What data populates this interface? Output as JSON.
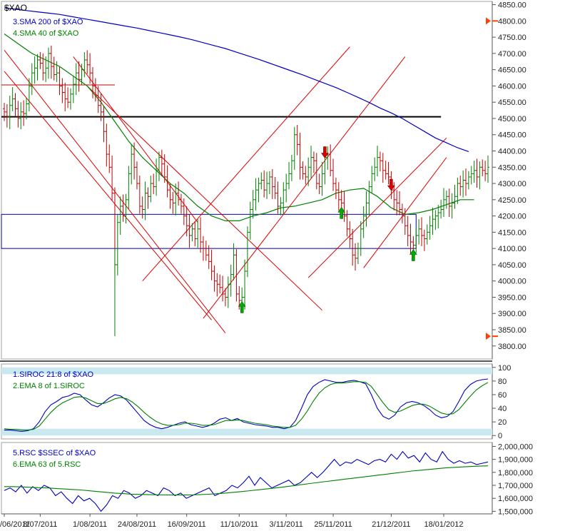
{
  "chart_data": [
    {
      "type": "line",
      "subtype": "ohlc-bars",
      "title": "$XAO",
      "y_axis": "right",
      "ylim": [
        3760,
        4860
      ],
      "ticks": [
        3800,
        3850,
        3900,
        3950,
        4000,
        4050,
        4100,
        4150,
        4200,
        4250,
        4300,
        4350,
        4400,
        4450,
        4500,
        4550,
        4600,
        4650,
        4700,
        4750,
        4800,
        4850
      ],
      "tick_labels": [
        "3800.00",
        "3850.00",
        "3900.00",
        "3950.00",
        "4000.00",
        "4050.00",
        "4100.00",
        "4150.00",
        "4200.00",
        "4250.00",
        "4300.00",
        "4350.00",
        "4400.00",
        "4450.00",
        "4500.00",
        "4550.00",
        "4600.00",
        "4650.00",
        "4700.00",
        "4750.00",
        "4800.00",
        "4850.00"
      ],
      "markers_right": [
        4800,
        3830
      ],
      "colors": {
        "up": "#008000",
        "down": "#c00000",
        "sma200": "#0000c0",
        "sma40": "#008000",
        "channels": "#dd0000",
        "levels": "#000000",
        "boxes": "#0000a0"
      },
      "legend": [
        {
          "label": "3.SMA 200  of $XAO",
          "color": "#0000c0"
        },
        {
          "label": "4.SMA 40  of $XAO",
          "color": "#008000"
        }
      ],
      "close": [
        4520,
        4505,
        4540,
        4560,
        4530,
        4500,
        4520,
        4515,
        4545,
        4600,
        4640,
        4655,
        4680,
        4670,
        4640,
        4655,
        4700,
        4660,
        4635,
        4640,
        4600,
        4580,
        4560,
        4550,
        4575,
        4605,
        4640,
        4620,
        4650,
        4680,
        4665,
        4640,
        4600,
        4570,
        4540,
        4520,
        4460,
        4390,
        4350,
        4270,
        4050,
        4180,
        4230,
        4200,
        4250,
        4330,
        4390,
        4350,
        4300,
        4230,
        4220,
        4270,
        4260,
        4300,
        4290,
        4340,
        4380,
        4360,
        4320,
        4280,
        4250,
        4240,
        4270,
        4250,
        4230,
        4200,
        4170,
        4140,
        4160,
        4130,
        4160,
        4120,
        4100,
        4080,
        4060,
        4030,
        4000,
        3990,
        3980,
        3960,
        3950,
        3990,
        4020,
        4080,
        3960,
        3940,
        3950,
        4030,
        4150,
        4220,
        4250,
        4280,
        4300,
        4310,
        4280,
        4300,
        4320,
        4290,
        4270,
        4230,
        4240,
        4280,
        4300,
        4330,
        4370,
        4450,
        4420,
        4350,
        4330,
        4320,
        4350,
        4380,
        4370,
        4300,
        4290,
        4330,
        4380,
        4390,
        4340,
        4300,
        4280,
        4250,
        4240,
        4200,
        4160,
        4130,
        4080,
        4070,
        4100,
        4160,
        4200,
        4240,
        4290,
        4330,
        4350,
        4380,
        4370,
        4340,
        4330,
        4320,
        4280,
        4250,
        4240,
        4220,
        4200,
        4170,
        4140,
        4120,
        4110,
        4140,
        4160,
        4140,
        4130,
        4150,
        4170,
        4190,
        4200,
        4210,
        4220,
        4250,
        4260,
        4230,
        4240,
        4260,
        4300,
        4290,
        4310,
        4300,
        4320,
        4330,
        4340,
        4320,
        4350,
        4340,
        4330,
        4350
      ],
      "sma200": [
        4840,
        4836,
        4832,
        4828,
        4824,
        4820,
        4814,
        4808,
        4802,
        4796,
        4790,
        4784,
        4778,
        4771,
        4764,
        4757,
        4750,
        4742,
        4733,
        4724,
        4715,
        4704,
        4693,
        4682,
        4670,
        4658,
        4646,
        4634,
        4621,
        4608,
        4595,
        4580,
        4565,
        4549,
        4532,
        4517,
        4500,
        4480,
        4460,
        4440,
        4425,
        4410,
        4398
      ],
      "sma200_x": [
        0,
        4,
        8,
        12,
        16,
        20,
        24,
        28,
        32,
        36,
        40,
        44,
        48,
        52,
        56,
        60,
        64,
        68,
        72,
        76,
        80,
        84,
        88,
        92,
        96,
        100,
        104,
        108,
        112,
        116,
        120,
        124,
        128,
        132,
        136,
        140,
        144,
        148,
        152,
        156,
        160,
        164,
        168
      ],
      "sma40": [
        4760,
        4730,
        4700,
        4680,
        4660,
        4630,
        4600,
        4550,
        4490,
        4430,
        4380,
        4340,
        4300,
        4270,
        4230,
        4200,
        4185,
        4185,
        4200,
        4210,
        4225,
        4230,
        4240,
        4250,
        4270,
        4280,
        4285,
        4260,
        4225,
        4205,
        4210,
        4220,
        4235,
        4250,
        4250
      ],
      "sma40_x": [
        0,
        5,
        10,
        15,
        20,
        25,
        30,
        35,
        40,
        45,
        50,
        55,
        60,
        65,
        70,
        75,
        80,
        85,
        90,
        95,
        100,
        105,
        110,
        115,
        120,
        125,
        130,
        135,
        140,
        145,
        150,
        155,
        160,
        165,
        170
      ],
      "horizontal_levels": [
        4505,
        4603
      ],
      "boxes": [
        {
          "from": 4100,
          "to": 4205
        }
      ],
      "channel_lines": [
        {
          "from": [
            0,
            4710
          ],
          "to": [
            80,
            3840
          ]
        },
        {
          "from": [
            0,
            4645
          ],
          "to": [
            75,
            3880
          ]
        },
        {
          "from": [
            25,
            4690
          ],
          "to": [
            70,
            4180
          ]
        },
        {
          "from": [
            30,
            4600
          ],
          "to": [
            115,
            3910
          ]
        },
        {
          "from": [
            50,
            4000
          ],
          "to": [
            125,
            4720
          ]
        },
        {
          "from": [
            72,
            3885
          ],
          "to": [
            145,
            4690
          ]
        },
        {
          "from": [
            110,
            4010
          ],
          "to": [
            160,
            4440
          ]
        },
        {
          "from": [
            130,
            4040
          ],
          "to": [
            160,
            4380
          ]
        }
      ],
      "signals": [
        {
          "x": 86,
          "direction": "up",
          "color": "#00aa00"
        },
        {
          "x": 116,
          "direction": "down",
          "color": "#dd0000"
        },
        {
          "x": 122,
          "direction": "up",
          "color": "#00aa00"
        },
        {
          "x": 140,
          "direction": "down",
          "color": "#dd0000"
        },
        {
          "x": 148,
          "direction": "up",
          "color": "#00aa00"
        }
      ]
    },
    {
      "type": "line",
      "title": "",
      "ylim": [
        -5,
        105
      ],
      "ticks": [
        0,
        20,
        40,
        60,
        80,
        100
      ],
      "tick_labels": [
        "0",
        "20",
        "40",
        "60",
        "80",
        "100"
      ],
      "bands": [
        [
          90,
          100
        ],
        [
          0,
          10
        ]
      ],
      "legend": [
        {
          "label": "1.SIROC 21:8  of $XAO",
          "color": "#0000c0"
        },
        {
          "label": "2.EMA 8  of 1.SIROC",
          "color": "#008000"
        }
      ],
      "series": [
        {
          "name": "1.SIROC 21:8  of $XAO",
          "color": "#0000c0",
          "values": [
            8,
            8,
            7,
            6,
            7,
            10,
            20,
            35,
            45,
            50,
            56,
            58,
            62,
            60,
            52,
            45,
            42,
            48,
            55,
            60,
            58,
            52,
            42,
            32,
            22,
            16,
            12,
            10,
            12,
            15,
            18,
            20,
            16,
            14,
            12,
            14,
            18,
            24,
            26,
            22,
            25,
            20,
            18,
            16,
            15,
            14,
            12,
            12,
            10,
            12,
            22,
            40,
            60,
            72,
            78,
            82,
            80,
            78,
            78,
            80,
            81,
            79,
            76,
            60,
            40,
            28,
            24,
            30,
            42,
            48,
            50,
            48,
            44,
            38,
            30,
            26,
            28,
            35,
            50,
            66,
            75,
            80,
            82,
            83
          ]
        },
        {
          "name": "2.EMA 8  of 1.SIROC",
          "color": "#008000",
          "values": [
            10,
            9,
            9,
            8,
            8,
            9,
            14,
            24,
            34,
            42,
            48,
            52,
            56,
            57,
            55,
            51,
            47,
            47,
            50,
            54,
            56,
            54,
            49,
            42,
            34,
            27,
            21,
            17,
            15,
            15,
            16,
            18,
            18,
            17,
            15,
            15,
            16,
            19,
            22,
            22,
            23,
            22,
            20,
            18,
            17,
            16,
            14,
            13,
            12,
            12,
            15,
            24,
            36,
            50,
            62,
            70,
            75,
            77,
            77,
            78,
            79,
            79,
            78,
            72,
            60,
            48,
            38,
            34,
            36,
            40,
            44,
            46,
            46,
            43,
            38,
            33,
            31,
            32,
            38,
            48,
            58,
            67,
            73,
            78
          ]
        }
      ]
    },
    {
      "type": "line",
      "title": "",
      "ylim": [
        1480000,
        2030000
      ],
      "ticks": [
        1500000,
        1600000,
        1700000,
        1800000,
        1900000,
        2000000
      ],
      "tick_labels": [
        "1,500,000",
        "1,600,000",
        "1,700,000",
        "1,800,000",
        "1,900,000",
        "2,000,000"
      ],
      "legend": [
        {
          "label": "5.RSC  $SSEC of $XAO",
          "color": "#0000c0"
        },
        {
          "label": "6.EMA 63  of 5.RSC",
          "color": "#008000"
        }
      ],
      "series": [
        {
          "name": "5.RSC  $SSEC of $XAO",
          "color": "#0000c0",
          "values": [
            1660,
            1680,
            1650,
            1700,
            1640,
            1690,
            1660,
            1700,
            1680,
            1620,
            1650,
            1600,
            1560,
            1620,
            1580,
            1600,
            1560,
            1500,
            1550,
            1620,
            1600,
            1660,
            1640,
            1600,
            1620,
            1660,
            1640,
            1620,
            1680,
            1660,
            1620,
            1640,
            1600,
            1620,
            1640,
            1660,
            1680,
            1620,
            1640,
            1660,
            1700,
            1680,
            1720,
            1770,
            1700,
            1760,
            1720,
            1680,
            1700,
            1720,
            1740,
            1700,
            1720,
            1760,
            1800,
            1760,
            1800,
            1850,
            1900,
            1850,
            1880,
            1870,
            1900,
            1880,
            1860,
            1890,
            1900,
            1880,
            1940,
            1900,
            1960,
            1910,
            1930,
            1880,
            1950,
            1900,
            1880,
            1960,
            1900,
            1870,
            1890,
            1870,
            1880,
            1860,
            1870,
            1880
          ]
        },
        {
          "name": "6.EMA 63  of 5.RSC",
          "color": "#008000",
          "values": [
            1690,
            1690,
            1688,
            1685,
            1682,
            1680,
            1676,
            1672,
            1668,
            1664,
            1658,
            1652,
            1646,
            1640,
            1636,
            1632,
            1630,
            1628,
            1627,
            1626,
            1625,
            1625,
            1626,
            1628,
            1631,
            1635,
            1640,
            1646,
            1652,
            1659,
            1666,
            1673,
            1680,
            1688,
            1696,
            1705,
            1714,
            1722,
            1730,
            1738,
            1746,
            1754,
            1762,
            1770,
            1778,
            1786,
            1794,
            1802,
            1810,
            1816,
            1822,
            1828,
            1834,
            1838,
            1842,
            1845,
            1848,
            1850
          ]
        }
      ]
    }
  ],
  "x_axis": {
    "tick_labels": [
      "/06/2011",
      "8/07/2011",
      "1/08/2011",
      "24/08/2011",
      "16/09/2011",
      "11/10/2011",
      "3/11/2011",
      "25/11/2011",
      "21/12/2011",
      "18/01/2012"
    ]
  }
}
